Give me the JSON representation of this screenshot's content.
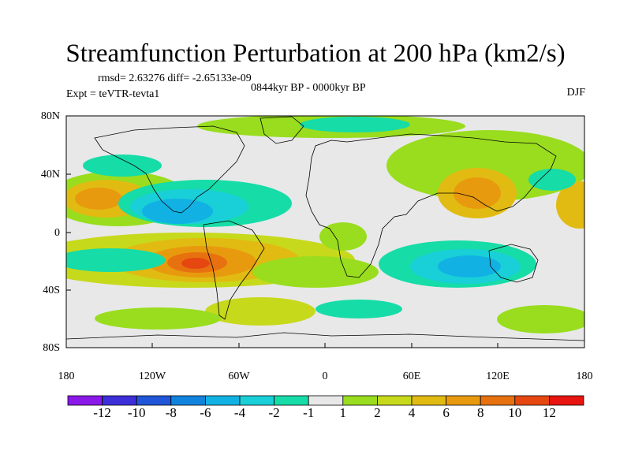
{
  "title": "Streamfunction Perturbation at 200 hPa (km2/s)",
  "stats": "rmsd= 2.63276  diff= -2.65133e-09",
  "period": "0844kyr BP - 0000kyr BP",
  "experiment": "Expt = teVTR-tevta1",
  "season": "DJF",
  "axes": {
    "lat_ticks": [
      "80N",
      "40N",
      "0",
      "40S",
      "80S"
    ],
    "lon_ticks": [
      "180",
      "120W",
      "60W",
      "0",
      "60E",
      "120E",
      "180"
    ]
  },
  "colorbar": {
    "labels": [
      "-12",
      "-10",
      "-8",
      "-6",
      "-4",
      "-2",
      "-1",
      "1",
      "2",
      "4",
      "6",
      "8",
      "10",
      "12"
    ],
    "colors": [
      "#8a18e8",
      "#3c2ed8",
      "#1f55d6",
      "#1283dd",
      "#11b2e3",
      "#19cfd8",
      "#16dca8",
      "#e8e8e8",
      "#99dd1e",
      "#c7d91b",
      "#e1bb12",
      "#e89a0e",
      "#e7710f",
      "#e64711",
      "#e8140f"
    ]
  }
}
